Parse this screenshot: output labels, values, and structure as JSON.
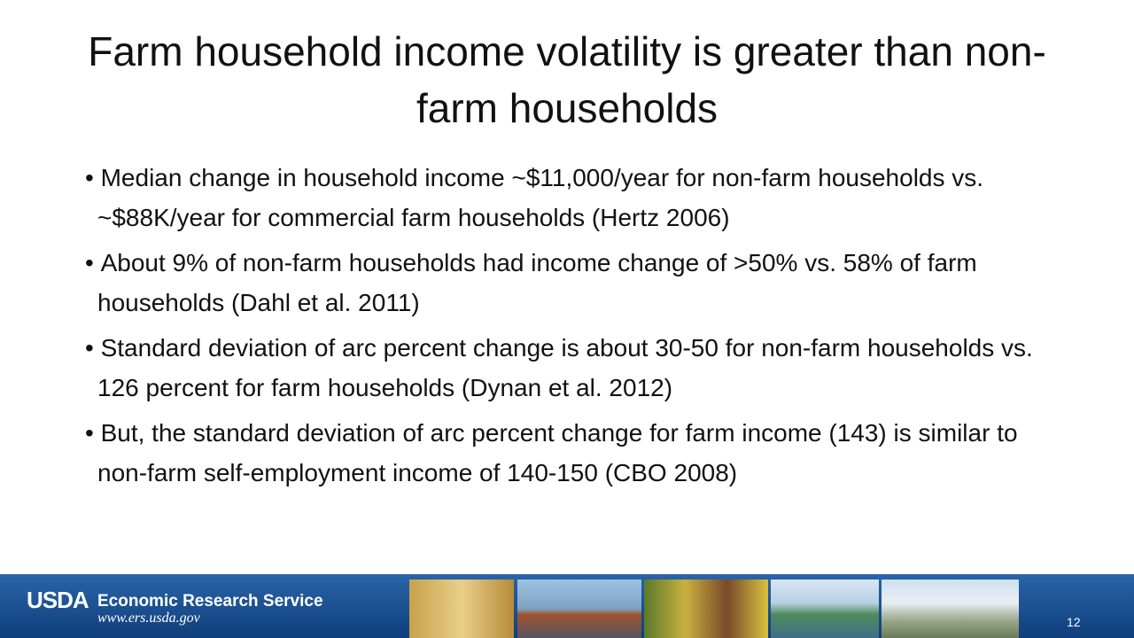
{
  "title": "Farm household income volatility is greater than non-farm households",
  "bullets": [
    "Median change in household income ~$11,000/year for non-farm households vs. ~$88K/year for commercial farm households (Hertz 2006)",
    "About 9% of non-farm households had income change of >50% vs. 58% of farm households (Dahl et al. 2011)",
    "Standard deviation of arc percent change is about 30-50 for non-farm households vs. 126 percent for farm households (Dynan et al. 2012)",
    "But, the standard deviation of arc percent change for farm income (143) is similar to non-farm self-employment income of 140-150 (CBO 2008)"
  ],
  "footer": {
    "logo": "USDA",
    "agency": "Economic Research Service",
    "url": "www.ers.usda.gov",
    "slide_number": "12"
  }
}
